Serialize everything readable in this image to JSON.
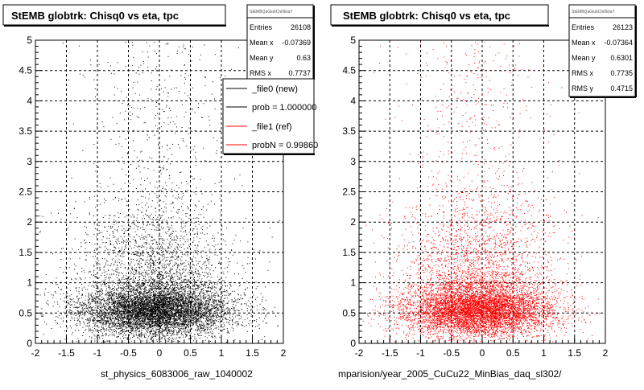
{
  "footer_left": "st_physics_6083006_raw_1040002",
  "footer_right": "mparision/year_2005_CuCu22_MinBias_daq_sl302/",
  "legend": {
    "entries": [
      {
        "label": "_file0 (new)",
        "color": "#000000"
      },
      {
        "label": "prob = 1.000000",
        "color": "#000000"
      },
      {
        "label": "_file1 (ref)",
        "color": "#ff0000"
      },
      {
        "label": "probN = 0.99860",
        "color": "#ff0000"
      }
    ]
  },
  "chart_data": [
    {
      "type": "scatter",
      "title": "StEMB globtrk: Chisq0 vs eta, tpc",
      "xlim": [
        -2,
        2
      ],
      "ylim": [
        0,
        5
      ],
      "x_ticks": [
        "-2",
        "-1.5",
        "-1",
        "-0.5",
        "0",
        "0.5",
        "1",
        "1.5",
        "2"
      ],
      "y_ticks": [
        "0",
        "0.5",
        "1",
        "1.5",
        "2",
        "2.5",
        "3",
        "3.5",
        "4",
        "4.5",
        "5"
      ],
      "grid": true,
      "marker_color": "#000000",
      "stats": {
        "header": "StEMBQaGlobChi0Eta?",
        "rows": [
          {
            "label": "Entries",
            "value": "26108"
          },
          {
            "label": "Mean x",
            "value": "-0.07369"
          },
          {
            "label": "Mean y",
            "value": "0.63"
          },
          {
            "label": "RMS x",
            "value": "0.7737"
          }
        ]
      }
    },
    {
      "type": "scatter",
      "title": "StEMB globtrk: Chisq0 vs eta, tpc",
      "xlim": [
        -2,
        2
      ],
      "ylim": [
        0,
        5
      ],
      "x_ticks": [
        "-2",
        "-1.5",
        "-1",
        "-0.5",
        "0",
        "0.5",
        "1",
        "1.5",
        "2"
      ],
      "y_ticks": [
        "0",
        "0.5",
        "1",
        "1.5",
        "2",
        "2.5",
        "3",
        "3.5",
        "4",
        "4.5",
        "5"
      ],
      "grid": true,
      "marker_color": "#ff0000",
      "stats": {
        "header": "StEMBQaGlobChi0Eta?",
        "rows": [
          {
            "label": "Entries",
            "value": "26123"
          },
          {
            "label": "Mean x",
            "value": "-0.07364"
          },
          {
            "label": "Mean y",
            "value": "0.6301"
          },
          {
            "label": "RMS x",
            "value": "0.7735"
          },
          {
            "label": "RMS y",
            "value": "0.4715"
          }
        ]
      }
    }
  ]
}
